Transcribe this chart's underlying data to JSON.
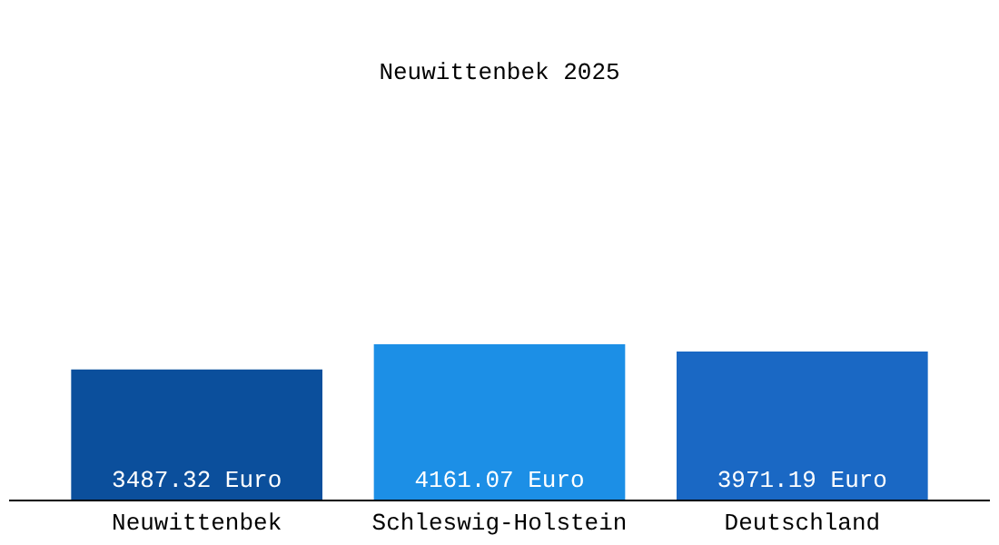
{
  "chart_data": {
    "type": "bar",
    "title": "Neuwittenbek 2025",
    "categories": [
      "Neuwittenbek",
      "Schleswig-Holstein",
      "Deutschland"
    ],
    "values": [
      3487.32,
      4161.07,
      3971.19
    ],
    "value_labels": [
      "3487.32 Euro",
      "4161.07 Euro",
      "3971.19 Euro"
    ],
    "colors": [
      "#0b4f9c",
      "#1c8fe6",
      "#1a68c4"
    ]
  }
}
